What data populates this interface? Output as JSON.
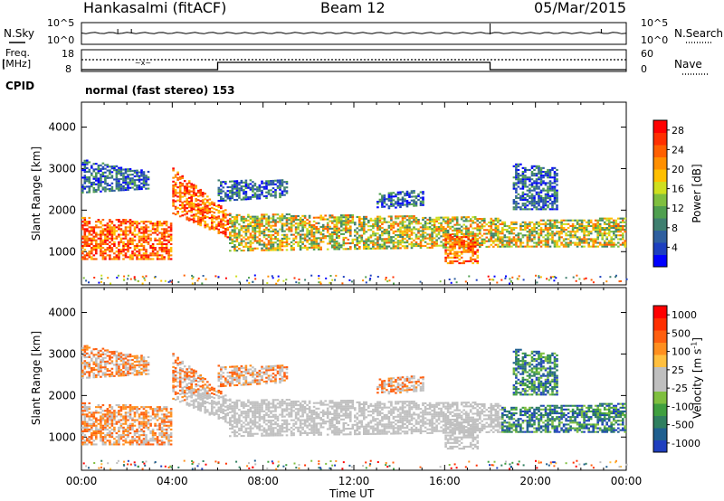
{
  "header": {
    "title": "Hankasalmi (fitACF)",
    "beam": "Beam 12",
    "date": "05/Mar/2015"
  },
  "noise_panel": {
    "left_label": "N.Sky",
    "right_label": "N.Search",
    "left_ticks": [
      "10^5",
      "10^0"
    ],
    "right_ticks": [
      "10^5",
      "10^0"
    ]
  },
  "freq_panel": {
    "left_label_line1": "Freq.",
    "left_label_line2": "[MHz]",
    "left_ticks": [
      "18",
      "8"
    ],
    "right_label": "Nave",
    "right_ticks": [
      "60",
      "0"
    ]
  },
  "cpid_panel": {
    "label": "CPID",
    "text": "normal (fast stereo) 153"
  },
  "colors": {
    "power_scale": [
      "#0000ff",
      "#1d3fbf",
      "#2f5f9f",
      "#3f7f6f",
      "#4f9f4f",
      "#7fbf3f",
      "#cfdf1f",
      "#ffbf00",
      "#ff8f00",
      "#ff5f00",
      "#ff2f00",
      "#ff0000"
    ],
    "velocity_scale": [
      "#1f3fbf",
      "#1f5f8f",
      "#2f7f5f",
      "#3f9f3f",
      "#7fbf3f",
      "#bfbfbf",
      "#bfbfbf",
      "#ffbf3f",
      "#ff8f1f",
      "#ff5f0f",
      "#ff2f00",
      "#ff0000"
    ],
    "ground_scatter": "#c0c0c0"
  },
  "chart_data": [
    {
      "type": "heatmap",
      "name": "power",
      "ylabel": "Slant Range [km]",
      "xlabel": "Time UT",
      "xticks": [
        "00:00",
        "04:00",
        "08:00",
        "12:00",
        "16:00",
        "20:00",
        "00:00"
      ],
      "yticks": [
        "1000",
        "2000",
        "3000",
        "4000"
      ],
      "ylim": [
        200,
        4600
      ],
      "xlim_hours": [
        0,
        24
      ],
      "colorbar_label": "Power [dB]",
      "colorbar_ticks": [
        "4",
        "8",
        "12",
        "16",
        "20",
        "24",
        "28"
      ],
      "colorbar_range": [
        0,
        30
      ]
    },
    {
      "type": "heatmap",
      "name": "velocity",
      "ylabel": "Slant Range [km]",
      "xlabel": "Time UT",
      "xticks": [
        "00:00",
        "04:00",
        "08:00",
        "12:00",
        "16:00",
        "20:00",
        "00:00"
      ],
      "yticks": [
        "1000",
        "2000",
        "3000",
        "4000"
      ],
      "ylim": [
        200,
        4600
      ],
      "xlim_hours": [
        0,
        24
      ],
      "colorbar_label": "Velocity [m s^-1]",
      "colorbar_ticks": [
        "1000",
        "500",
        "100",
        "25",
        "-25",
        "-100",
        "-500",
        "-1000"
      ]
    }
  ],
  "x_axis_title": "Time UT"
}
